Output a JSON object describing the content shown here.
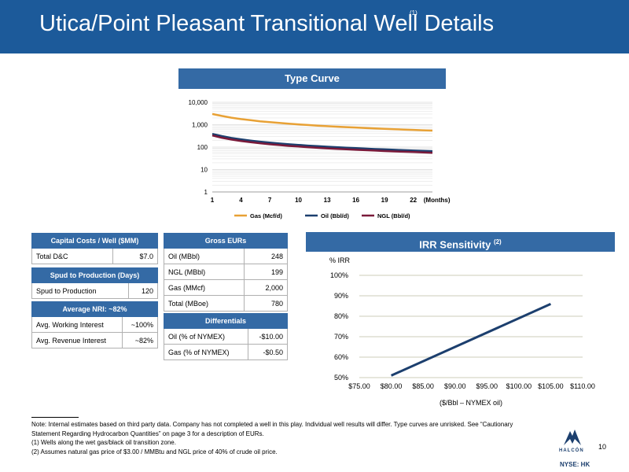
{
  "header": {
    "title": "Utica/Point Pleasant Transitional Well Details",
    "sup": "(1)"
  },
  "type_curve": {
    "title": "Type Curve"
  },
  "irr": {
    "title": "IRR Sensitivity",
    "sup": "(2)"
  },
  "capital_costs": {
    "title": "Capital Costs / Well ($MM)",
    "rows": [
      {
        "label": "Total D&C",
        "value": "$7.0"
      }
    ]
  },
  "spud": {
    "title": "Spud to Production (Days)",
    "rows": [
      {
        "label": "Spud to Production",
        "value": "120"
      }
    ]
  },
  "nri": {
    "title": "Average NRI: ~82%",
    "rows": [
      {
        "label": "Avg. Working Interest",
        "value": "~100%"
      },
      {
        "label": "Avg. Revenue Interest",
        "value": "~82%"
      }
    ]
  },
  "gross_eurs": {
    "title": "Gross EURs",
    "rows": [
      {
        "label": "Oil (MBbl)",
        "value": "248"
      },
      {
        "label": "NGL (MBbl)",
        "value": "199"
      },
      {
        "label": "Gas (MMcf)",
        "value": "2,000"
      },
      {
        "label": "Total (MBoe)",
        "value": "780"
      }
    ]
  },
  "differentials": {
    "title": "Differentials",
    "rows": [
      {
        "label": "Oil (% of NYMEX)",
        "value": "-$10.00"
      },
      {
        "label": "Gas (% of NYMEX)",
        "value": "-$0.50"
      }
    ]
  },
  "footnotes": {
    "note": "Note: Internal estimates based on third party data. Company has not completed a well in this play. Individual well results will differ. Type curves are unrisked.  See “Cautionary Statement Regarding Hydrocarbon Quantities” on page 3 for a description of EURs.",
    "fn1": "(1)    Wells along the wet gas/black oil transition zone.",
    "fn2": "(2)    Assumes natural gas price of $3.00 / MMBtu and NGL price of 40% of crude oil price."
  },
  "page_number": "10",
  "ticker": "NYSE: HK",
  "logo_text": "HALCÓN",
  "colors": {
    "header": "#1c5a9a",
    "band": "#346aa5",
    "gas": "#e8a135",
    "oil": "#1c3f6e",
    "ngl": "#7a1a3a",
    "irr_line": "#1c3f6e"
  },
  "chart_data": [
    {
      "type": "line",
      "title": "Type Curve",
      "y_scale": "log",
      "ylim": [
        1,
        10000
      ],
      "y_ticks": [
        "1",
        "10",
        "100",
        "1,000",
        "10,000"
      ],
      "x": [
        1,
        2,
        3,
        4,
        5,
        6,
        7,
        8,
        9,
        10,
        11,
        12,
        13,
        14,
        15,
        16,
        17,
        18,
        19,
        20,
        21,
        22,
        23,
        24
      ],
      "x_ticks": [
        "1",
        "4",
        "7",
        "10",
        "13",
        "16",
        "19",
        "22"
      ],
      "x_unit": "(Months)",
      "grid": true,
      "legend": "bottom",
      "series": [
        {
          "name": "Gas (Mcf/d)",
          "color": "#e8a135",
          "values": [
            3000,
            2450,
            2050,
            1780,
            1580,
            1420,
            1300,
            1190,
            1100,
            1030,
            970,
            910,
            860,
            820,
            780,
            745,
            710,
            680,
            655,
            630,
            605,
            585,
            565,
            545
          ]
        },
        {
          "name": "Oil (Bbl/d)",
          "color": "#1c3f6e",
          "values": [
            390,
            310,
            258,
            222,
            196,
            175,
            158,
            145,
            134,
            125,
            117,
            110,
            104,
            99,
            94,
            90,
            86,
            82,
            79,
            76,
            73,
            70,
            68,
            66
          ]
        },
        {
          "name": "NGL (Bbl/d)",
          "color": "#7a1a3a",
          "values": [
            330,
            262,
            218,
            188,
            166,
            148,
            134,
            123,
            113,
            106,
            99,
            93,
            88,
            84,
            80,
            76,
            73,
            70,
            67,
            64,
            62,
            60,
            58,
            56
          ]
        }
      ]
    },
    {
      "type": "line",
      "title": "IRR Sensitivity",
      "ylabel": "% IRR",
      "xlabel": "($/Bbl – NYMEX oil)",
      "xlim": [
        75,
        110
      ],
      "ylim": [
        50,
        100
      ],
      "x_ticks": [
        "$75.00",
        "$80.00",
        "$85.00",
        "$90.00",
        "$95.00",
        "$100.00",
        "$105.00",
        "$110.00"
      ],
      "y_ticks": [
        "50%",
        "60%",
        "70%",
        "80%",
        "90%",
        "100%"
      ],
      "grid": true,
      "series": [
        {
          "name": "",
          "color": "#1c3f6e",
          "x": [
            80,
            105
          ],
          "values": [
            51,
            86
          ]
        }
      ]
    }
  ]
}
